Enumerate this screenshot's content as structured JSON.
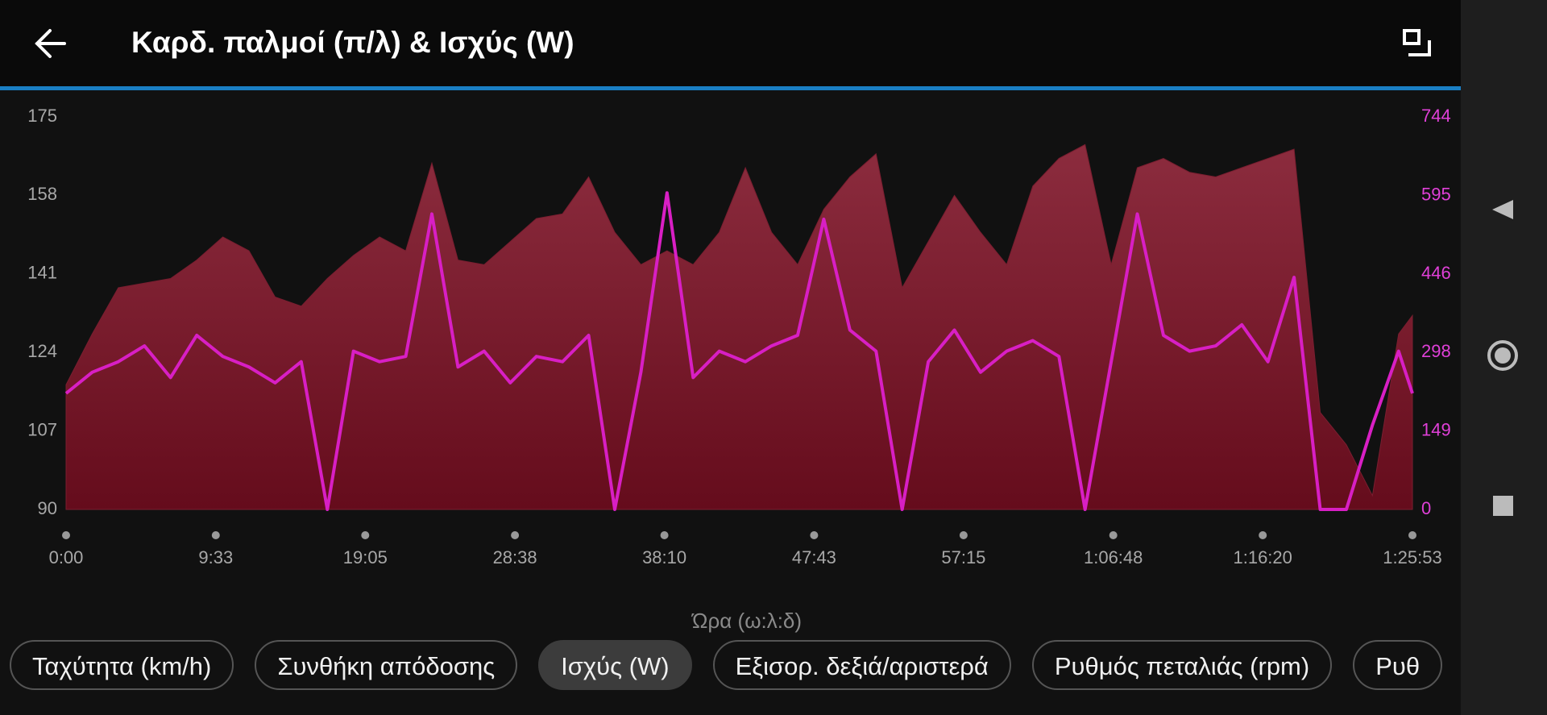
{
  "chart_data": {
    "type": "area",
    "title": "Καρδ. παλμοί (π/λ) & Ισχύς (W)",
    "x_label": "Ώρα (ω:λ:δ)",
    "x": [
      0,
      100,
      200,
      300,
      400,
      500,
      600,
      700,
      800,
      900,
      1000,
      1100,
      1200,
      1300,
      1400,
      1500,
      1600,
      1700,
      1800,
      1900,
      2000,
      2100,
      2200,
      2300,
      2400,
      2500,
      2600,
      2700,
      2800,
      2900,
      3000,
      3100,
      3200,
      3300,
      3400,
      3500,
      3600,
      3700,
      3800,
      3900,
      4000,
      4100,
      4200,
      4300,
      4400,
      4500,
      4600,
      4700,
      4800,
      4900,
      5000,
      5100,
      5153
    ],
    "series": [
      {
        "type": "area",
        "color": "#7a1e30",
        "axis": "y",
        "values": [
          117,
          128,
          138,
          139,
          140,
          144,
          149,
          146,
          136,
          134,
          140,
          145,
          149,
          146,
          165,
          144,
          143,
          148,
          153,
          154,
          162,
          150,
          143,
          146,
          143,
          150,
          164,
          150,
          143,
          155,
          162,
          167,
          138,
          148,
          158,
          150,
          143,
          160,
          166,
          169,
          143,
          164,
          166,
          163,
          162,
          164,
          166,
          168,
          111,
          104,
          93,
          128,
          132
        ]
      },
      {
        "type": "line",
        "color": "#d81fc4",
        "axis": "y2",
        "values": [
          220,
          260,
          280,
          310,
          250,
          330,
          290,
          270,
          240,
          280,
          0,
          300,
          280,
          290,
          560,
          270,
          300,
          240,
          290,
          280,
          330,
          0,
          260,
          600,
          250,
          300,
          280,
          310,
          330,
          550,
          340,
          300,
          0,
          280,
          340,
          260,
          300,
          320,
          290,
          0,
          280,
          560,
          330,
          300,
          310,
          350,
          280,
          440,
          0,
          0,
          160,
          300,
          220
        ]
      }
    ],
    "xlim": [
      0,
      5153
    ],
    "xticks": [
      {
        "value": 0,
        "label": "0:00"
      },
      {
        "value": 573,
        "label": "9:33"
      },
      {
        "value": 1145,
        "label": "19:05"
      },
      {
        "value": 1718,
        "label": "28:38"
      },
      {
        "value": 2290,
        "label": "38:10"
      },
      {
        "value": 2863,
        "label": "47:43"
      },
      {
        "value": 3435,
        "label": "57:15"
      },
      {
        "value": 4008,
        "label": "1:06:48"
      },
      {
        "value": 4580,
        "label": "1:16:20"
      },
      {
        "value": 5153,
        "label": "1:25:53"
      }
    ],
    "ylim": [
      90,
      175
    ],
    "yticks": [
      90,
      107,
      124,
      141,
      158,
      175
    ],
    "y2lim": [
      0,
      744
    ],
    "y2ticks": [
      0,
      149,
      298,
      446,
      595,
      744
    ],
    "y_tick_color": "#a8a8a8",
    "y2_tick_color": "#e040d8"
  },
  "chips": {
    "items": [
      "Ταχύτητα (km/h)",
      "Συνθήκη απόδοσης",
      "Ισχύς (W)",
      "Εξισορ. δεξιά/αριστερά",
      "Ρυθμός πεταλιάς (rpm)",
      "Ρυθ"
    ],
    "selected": 2
  }
}
